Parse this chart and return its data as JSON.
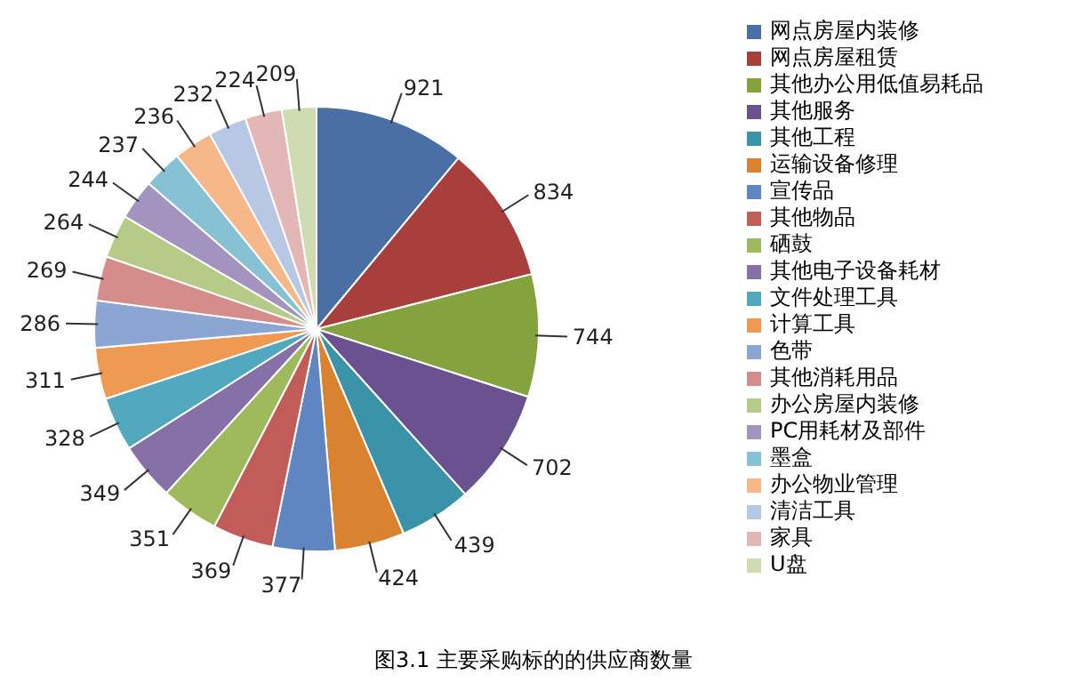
{
  "chart_data": {
    "type": "pie",
    "title": "图3.1 主要采购标的的供应商数量",
    "categories": [
      "网点房屋内装修",
      "网点房屋租赁",
      "其他办公用低值易耗品",
      "其他服务",
      "其他工程",
      "运输设备修理",
      "宣传品",
      "其他物品",
      "硒鼓",
      "其他电子设备耗材",
      "文件处理工具",
      "计算工具",
      "色带",
      "其他消耗用品",
      "办公房屋内装修",
      "PC用耗材及部件",
      "墨盒",
      "办公物业管理",
      "清洁工具",
      "家具",
      "U盘"
    ],
    "values": [
      921,
      834,
      744,
      702,
      439,
      424,
      377,
      369,
      351,
      349,
      328,
      311,
      286,
      269,
      264,
      244,
      237,
      236,
      232,
      224,
      209
    ],
    "colors": [
      "#4a6fa5",
      "#a93f3c",
      "#84a23d",
      "#6a5190",
      "#3a93a8",
      "#d9822f",
      "#5f86c0",
      "#c25c59",
      "#9fba5c",
      "#8670a8",
      "#52a9bf",
      "#ee9a52",
      "#8ca6d4",
      "#d58d8b",
      "#b7cb88",
      "#a293bf",
      "#86c2d4",
      "#f6b789",
      "#b8c8e4",
      "#e2b7b6",
      "#cfdcb1"
    ],
    "data_labels": true,
    "legend": "right"
  }
}
